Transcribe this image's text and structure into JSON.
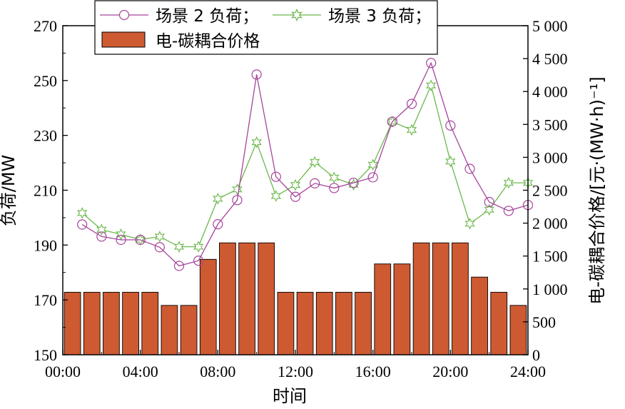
{
  "chart_data": {
    "type": "bar+line",
    "xlabel": "时间",
    "ylabel_left": "负荷/MW",
    "ylabel_right": "电-碳耦合价格/[元·(MW·h)⁻¹]",
    "x_ticks": [
      "00:00",
      "04:00",
      "08:00",
      "12:00",
      "16:00",
      "20:00",
      "24:00"
    ],
    "xlim": [
      0,
      24
    ],
    "ylim_left": [
      150,
      270
    ],
    "y_ticks_left": [
      "150",
      "170",
      "190",
      "210",
      "230",
      "250",
      "270"
    ],
    "ylim_right": [
      0,
      5000
    ],
    "y_ticks_right": [
      "0",
      "500",
      "1 000",
      "1 500",
      "2 000",
      "2 500",
      "3 000",
      "3 500",
      "4 000",
      "4 500",
      "5 000"
    ],
    "hours": [
      1,
      2,
      3,
      4,
      5,
      6,
      7,
      8,
      9,
      10,
      11,
      12,
      13,
      14,
      15,
      16,
      17,
      18,
      19,
      20,
      21,
      22,
      23,
      24
    ],
    "bars": {
      "name": "电-碳耦合价格",
      "axis": "right",
      "values": [
        950,
        950,
        950,
        950,
        950,
        750,
        750,
        1450,
        1700,
        1700,
        1700,
        950,
        950,
        950,
        950,
        950,
        1380,
        1380,
        1700,
        1700,
        1700,
        1180,
        950,
        750
      ]
    },
    "series": [
      {
        "name": "场景 2 负荷",
        "axis": "left",
        "marker": "circle",
        "values": [
          197.5,
          193.1,
          191.9,
          191.9,
          189.2,
          182.4,
          184.3,
          197.6,
          206.4,
          252.2,
          214.9,
          207.6,
          212.5,
          210.8,
          212.7,
          214.7,
          235.0,
          241.5,
          256.4,
          233.6,
          217.8,
          205.7,
          202.5,
          204.6
        ]
      },
      {
        "name": "场景 3 负荷",
        "axis": "left",
        "marker": "star",
        "values": [
          201.7,
          195.6,
          193.9,
          192.0,
          193.1,
          189.4,
          189.4,
          206.9,
          210.3,
          227.5,
          207.9,
          211.9,
          220.3,
          214.6,
          212.0,
          219.3,
          235.0,
          232.0,
          248.2,
          220.5,
          197.8,
          202.9,
          212.7,
          212.7
        ]
      }
    ],
    "legend_entries": [
      "场景 2 负荷；",
      "场景 3 负荷；",
      "电-碳耦合价格"
    ],
    "legend_position": "top-left",
    "grid": false,
    "colors": {
      "bar_fill": "#CE5A32",
      "bar_edge": "#000000",
      "scenario2": "#A6449B",
      "scenario3": "#6BB84B"
    }
  }
}
